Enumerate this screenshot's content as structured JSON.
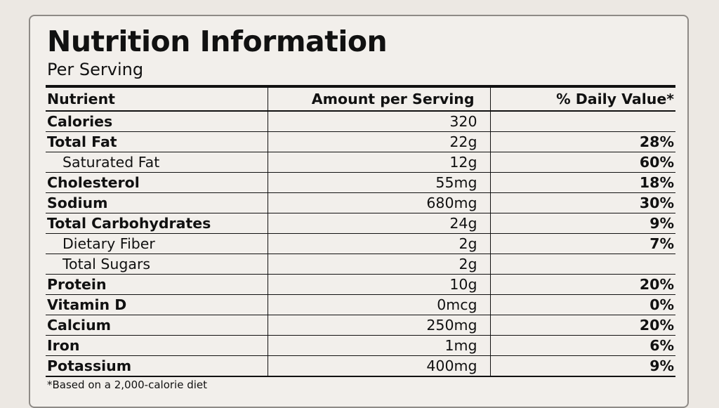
{
  "title": "Nutrition Information",
  "subtitle": "Per Serving",
  "columns": [
    "Nutrient",
    "Amount per Serving",
    "% Daily Value*"
  ],
  "rows": [
    {
      "name": "Calories",
      "amount": "320",
      "dv": "",
      "bold": true,
      "indent": false
    },
    {
      "name": "Total Fat",
      "amount": "22g",
      "dv": "28%",
      "bold": true,
      "indent": false
    },
    {
      "name": "Saturated Fat",
      "amount": "12g",
      "dv": "60%",
      "bold": false,
      "indent": true
    },
    {
      "name": "Cholesterol",
      "amount": "55mg",
      "dv": "18%",
      "bold": true,
      "indent": false
    },
    {
      "name": "Sodium",
      "amount": "680mg",
      "dv": "30%",
      "bold": true,
      "indent": false
    },
    {
      "name": "Total Carbohydrates",
      "amount": "24g",
      "dv": "9%",
      "bold": true,
      "indent": false
    },
    {
      "name": "Dietary Fiber",
      "amount": "2g",
      "dv": "7%",
      "bold": false,
      "indent": true
    },
    {
      "name": "Total Sugars",
      "amount": "2g",
      "dv": "",
      "bold": false,
      "indent": true
    },
    {
      "name": "Protein",
      "amount": "10g",
      "dv": "20%",
      "bold": true,
      "indent": false
    },
    {
      "name": "Vitamin D",
      "amount": "0mcg",
      "dv": "0%",
      "bold": true,
      "indent": false
    },
    {
      "name": "Calcium",
      "amount": "250mg",
      "dv": "20%",
      "bold": true,
      "indent": false
    },
    {
      "name": "Iron",
      "amount": "1mg",
      "dv": "6%",
      "bold": true,
      "indent": false
    },
    {
      "name": "Potassium",
      "amount": "400mg",
      "dv": "9%",
      "bold": true,
      "indent": false
    }
  ],
  "footnote": "*Based on a 2,000-calorie diet"
}
